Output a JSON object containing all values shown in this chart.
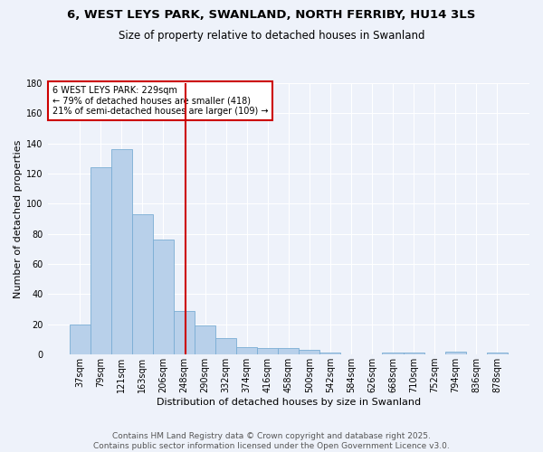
{
  "title": "6, WEST LEYS PARK, SWANLAND, NORTH FERRIBY, HU14 3LS",
  "subtitle": "Size of property relative to detached houses in Swanland",
  "xlabel": "Distribution of detached houses by size in Swanland",
  "ylabel": "Number of detached properties",
  "categories": [
    "37sqm",
    "79sqm",
    "121sqm",
    "163sqm",
    "206sqm",
    "248sqm",
    "290sqm",
    "332sqm",
    "374sqm",
    "416sqm",
    "458sqm",
    "500sqm",
    "542sqm",
    "584sqm",
    "626sqm",
    "668sqm",
    "710sqm",
    "752sqm",
    "794sqm",
    "836sqm",
    "878sqm"
  ],
  "values": [
    20,
    124,
    136,
    93,
    76,
    29,
    19,
    11,
    5,
    4,
    4,
    3,
    1,
    0,
    0,
    1,
    1,
    0,
    2,
    0,
    1
  ],
  "bar_color": "#b8d0ea",
  "bar_edge_color": "#7aadd4",
  "vline_color": "#cc0000",
  "annotation_text": "6 WEST LEYS PARK: 229sqm\n← 79% of detached houses are smaller (418)\n21% of semi-detached houses are larger (109) →",
  "annotation_box_color": "#ffffff",
  "annotation_box_edge_color": "#cc0000",
  "ylim": [
    0,
    180
  ],
  "yticks": [
    0,
    20,
    40,
    60,
    80,
    100,
    120,
    140,
    160,
    180
  ],
  "background_color": "#eef2fa",
  "footer": "Contains HM Land Registry data © Crown copyright and database right 2025.\nContains public sector information licensed under the Open Government Licence v3.0.",
  "title_fontsize": 9.5,
  "subtitle_fontsize": 8.5,
  "axis_label_fontsize": 8,
  "tick_fontsize": 7,
  "annotation_fontsize": 7,
  "footer_fontsize": 6.5
}
